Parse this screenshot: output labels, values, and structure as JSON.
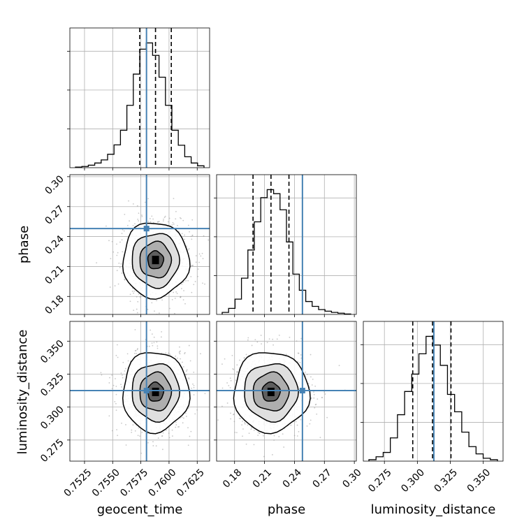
{
  "chart_data": {
    "type": "corner",
    "parameters": [
      {
        "name": "geocent_time",
        "label": "geocent_time",
        "range": [
          0.7512,
          0.7636
        ],
        "ticks": [
          0.7525,
          0.755,
          0.7575,
          0.76,
          0.7625
        ],
        "tick_labels": [
          "0.7525",
          "0.7550",
          "0.7575",
          "0.7600",
          "0.7625"
        ],
        "truth": 0.758,
        "quantiles": [
          0.7574,
          0.7588,
          0.7602
        ],
        "hist_values": [
          0.2,
          0.4,
          0.8,
          1.5,
          2.5,
          4.3,
          7.3,
          12.0,
          20.0,
          30.0,
          38.0,
          40.0,
          36.0,
          29.0,
          20.0,
          12.0,
          7.2,
          3.5,
          1.5,
          0.6
        ]
      },
      {
        "name": "phase",
        "label": "phase",
        "range": [
          0.162,
          0.302
        ],
        "ticks": [
          0.18,
          0.21,
          0.24,
          0.27,
          0.3
        ],
        "tick_labels": [
          "0.18",
          "0.21",
          "0.24",
          "0.27",
          "0.30"
        ],
        "truth": 0.248,
        "quantiles": [
          0.1985,
          0.2165,
          0.2345
        ],
        "hist_values": [
          0.5,
          1.5,
          3.8,
          9.0,
          16.0,
          23.0,
          29.0,
          31.0,
          30.0,
          26.0,
          18.0,
          10.0,
          6.0,
          3.2,
          2.0,
          1.2,
          0.8,
          0.5,
          0.3,
          0.1
        ]
      },
      {
        "name": "luminosity_distance",
        "label": "luminosity_distance",
        "range": [
          0.259,
          0.365
        ],
        "ticks": [
          0.275,
          0.3,
          0.325,
          0.35
        ],
        "tick_labels": [
          "0.275",
          "0.300",
          "0.325",
          "0.350"
        ],
        "truth": 0.3125,
        "quantiles": [
          0.2965,
          0.3115,
          0.3255
        ],
        "hist_values": [
          0.5,
          1.5,
          3.0,
          8.0,
          16.0,
          24.0,
          30.0,
          37.0,
          43.0,
          40.0,
          33.0,
          23.0,
          17.0,
          10.0,
          5.0,
          2.5,
          1.0,
          0.5
        ]
      }
    ],
    "truth_color": "#4682b4",
    "hist_color": "#000000",
    "quantile_line_style": "dashed",
    "grid": true
  }
}
